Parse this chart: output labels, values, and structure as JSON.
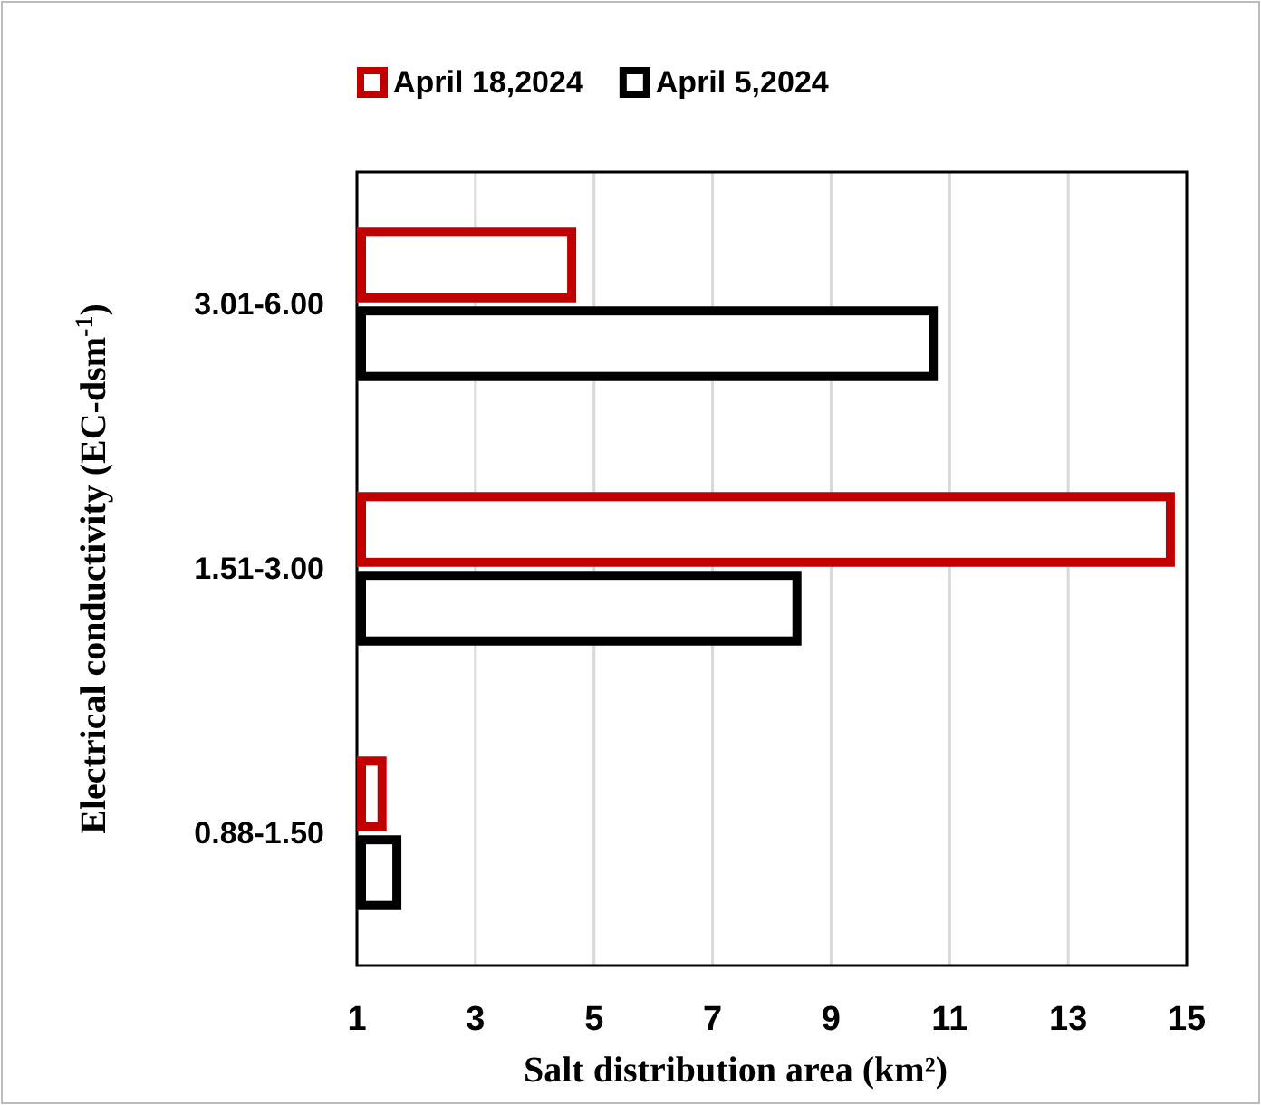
{
  "chart_data": {
    "type": "bar",
    "orientation": "horizontal",
    "xlabel": "Salt distribution  area (km²)",
    "ylabel": "Electrical conductivity (EC-dsm$^{-1}$)",
    "categories": [
      "3.01-6.00",
      "1.51-3.00",
      "0.88-1.50"
    ],
    "series": [
      {
        "name": "April 18,2024",
        "color": "#c00000",
        "values": [
          4.7,
          14.8,
          1.5
        ]
      },
      {
        "name": "April 5,2024",
        "color": "#000000",
        "values": [
          10.8,
          8.5,
          1.75
        ]
      }
    ],
    "xlim": [
      1,
      15
    ],
    "xticks": [
      1,
      3,
      5,
      7,
      9,
      11,
      13,
      15
    ],
    "grid": "x",
    "legend": "top"
  }
}
